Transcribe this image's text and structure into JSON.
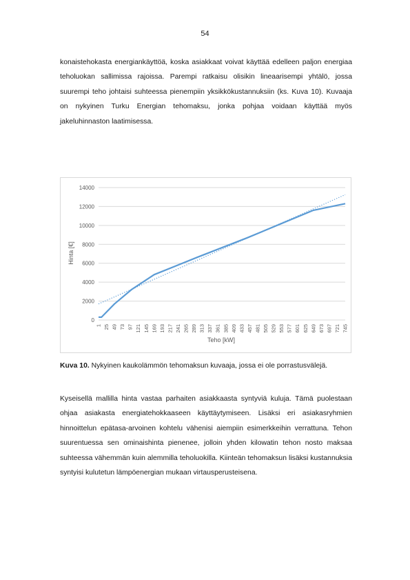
{
  "page_number": "54",
  "paragraph_1": "konaistehokasta energiankäyttöä, koska asiakkaat voivat käyttää edelleen paljon energiaa teholuokan sallimissa rajoissa. Parempi ratkaisu olisikin lineaarisempi yhtälö, jossa suurempi teho johtaisi suhteessa pienempiin yksikkökustannuksiin (ks. Kuva 10). Kuvaaja on nykyinen Turku Energian tehomaksu, jonka pohjaa voidaan käyttää myös jakeluhinnaston laatimisessa.",
  "caption": {
    "label": "Kuva 10.",
    "text": " Nykyinen kaukolämmön tehomaksun kuvaaja, jossa ei ole porrastusvälejä."
  },
  "paragraph_2": "Kyseisellä mallilla hinta vastaa parhaiten asiakkaasta syntyviä kuluja. Tämä puolestaan ohjaa asiakasta energiatehokkaaseen käyttäytymiseen. Lisäksi eri asiakasryhmien hinnoittelun epätasa-arvoinen kohtelu vähenisi aiempiin esimerkkeihin verrattuna. Tehon suurentuessa sen ominaishinta pienenee, jolloin yhden kilowatin tehon nosto maksaa suhteessa vähemmän kuin alemmilla teholuokilla. Kiinteän tehomaksun lisäksi kustannuksia syntyisi kulutetun lämpöenergian mukaan virtausperusteisena.",
  "chart_data": {
    "type": "line",
    "title": "",
    "xlabel": "Teho [kW]",
    "ylabel": "Hinta [€]",
    "ylim": [
      0,
      14000
    ],
    "yticks": [
      0,
      2000,
      4000,
      6000,
      8000,
      10000,
      12000,
      14000
    ],
    "xlim": [
      1,
      745
    ],
    "categories": [
      "1",
      "25",
      "49",
      "73",
      "97",
      "121",
      "145",
      "169",
      "193",
      "217",
      "241",
      "265",
      "289",
      "313",
      "337",
      "361",
      "385",
      "409",
      "433",
      "457",
      "481",
      "505",
      "529",
      "553",
      "577",
      "601",
      "625",
      "649",
      "673",
      "697",
      "721",
      "745"
    ],
    "grid": "horizontal",
    "colors": {
      "series": "#5b9bd5",
      "grid": "#d9d9d9",
      "text": "#595959"
    },
    "series": [
      {
        "name": "",
        "style": "solid",
        "points": [
          [
            1,
            300
          ],
          [
            10,
            300
          ],
          [
            49,
            1700
          ],
          [
            100,
            3200
          ],
          [
            169,
            4800
          ],
          [
            300,
            6650
          ],
          [
            450,
            8700
          ],
          [
            649,
            11600
          ],
          [
            745,
            12300
          ]
        ]
      },
      {
        "name": "",
        "style": "dotted",
        "kind": "linear-trend",
        "points": [
          [
            1,
            1700
          ],
          [
            745,
            13250
          ]
        ]
      }
    ]
  }
}
